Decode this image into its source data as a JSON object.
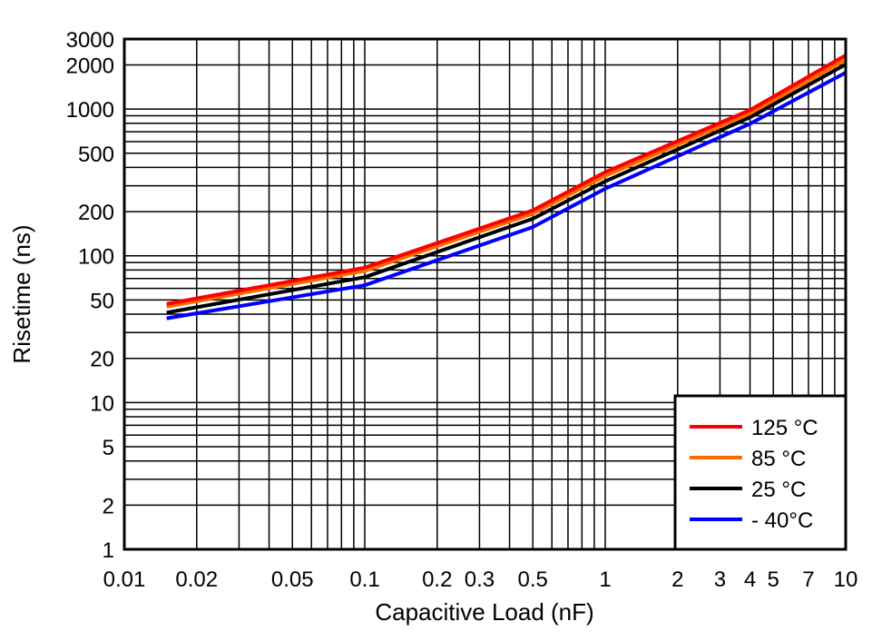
{
  "chart_data": {
    "type": "line",
    "xlabel": "Capacitive Load (nF)",
    "ylabel": "Risetime (ns)",
    "xscale": "log",
    "yscale": "log",
    "xlim": [
      0.01,
      10
    ],
    "ylim": [
      1,
      3000
    ],
    "grid": true,
    "legend_position": "bottom-right",
    "xticks": [
      0.01,
      0.02,
      0.05,
      0.1,
      0.2,
      0.3,
      0.5,
      1,
      2,
      3,
      4,
      5,
      7,
      10
    ],
    "xtick_labels": [
      "0.01",
      "0.02",
      "0.05",
      "0.1",
      "0.2",
      "0.3",
      "0.5",
      "1",
      "2",
      "3",
      "4",
      "5",
      "7",
      "10"
    ],
    "yticks": [
      1,
      2,
      5,
      10,
      20,
      50,
      100,
      200,
      500,
      1000,
      2000,
      3000
    ],
    "ytick_labels": [
      "1",
      "2",
      "5",
      "10",
      "20",
      "50",
      "100",
      "200",
      "500",
      "1000",
      "2000",
      "3000"
    ],
    "x": [
      0.015,
      0.1,
      0.5,
      1,
      4,
      10
    ],
    "series": [
      {
        "name": "125 °C",
        "color": "#ff0000",
        "values": [
          47,
          83,
          204,
          372,
          985,
          2325
        ]
      },
      {
        "name": "85 °C",
        "color": "#ff6a00",
        "values": [
          45,
          79,
          194,
          350,
          935,
          2170
        ]
      },
      {
        "name": "25 °C",
        "color": "#000000",
        "values": [
          41,
          71.5,
          179,
          322,
          878,
          2015
        ]
      },
      {
        "name": "- 40°C",
        "color": "#0000ff",
        "values": [
          37.5,
          63,
          157,
          287,
          794,
          1772
        ]
      }
    ]
  }
}
